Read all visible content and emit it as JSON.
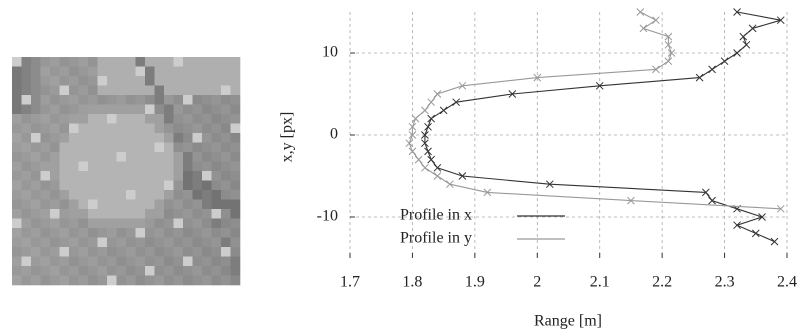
{
  "chart_data": {
    "type": "line",
    "xlabel": "Range [m]",
    "ylabel": "x,y [px]",
    "xlim": [
      1.7,
      2.4
    ],
    "xticks": [
      1.7,
      1.8,
      1.9,
      2,
      2.1,
      2.2,
      2.3,
      2.4
    ],
    "ylim": [
      -15,
      15
    ],
    "yticks": [
      -10,
      0,
      10
    ],
    "grid": true,
    "legend": "lower left",
    "series": [
      {
        "name": "Profile in x",
        "color": "#333333",
        "x": [
          2.32,
          2.39,
          2.345,
          2.33,
          2.335,
          2.32,
          2.3,
          2.28,
          2.26,
          2.1,
          1.96,
          1.87,
          1.85,
          1.83,
          1.825,
          1.82,
          1.82,
          1.825,
          1.83,
          1.84,
          1.88,
          2.02,
          2.27,
          2.28,
          2.32,
          2.36,
          2.32,
          2.35,
          2.38
        ],
        "y": [
          15,
          14,
          13,
          12,
          11,
          10,
          9,
          8,
          7,
          6,
          5,
          4,
          3,
          2,
          1,
          0,
          -1,
          -2,
          -3,
          -4,
          -5,
          -6,
          -7,
          -8,
          -9,
          -10,
          -11,
          -12,
          -13
        ]
      },
      {
        "name": "Profile in y",
        "color": "#999999",
        "x": [
          2.165,
          2.19,
          2.17,
          2.21,
          2.21,
          2.215,
          2.21,
          2.19,
          2.0,
          1.88,
          1.84,
          1.83,
          1.82,
          1.805,
          1.8,
          1.8,
          1.795,
          1.8,
          1.81,
          1.82,
          1.84,
          1.86,
          1.92,
          2.15,
          2.39
        ],
        "y": [
          15,
          14,
          13,
          12,
          11,
          10,
          9,
          8,
          7,
          6,
          5,
          4,
          3,
          2,
          1,
          0,
          -1,
          -2,
          -3,
          -4,
          -5,
          -6,
          -7,
          -8,
          -9
        ]
      }
    ]
  }
}
